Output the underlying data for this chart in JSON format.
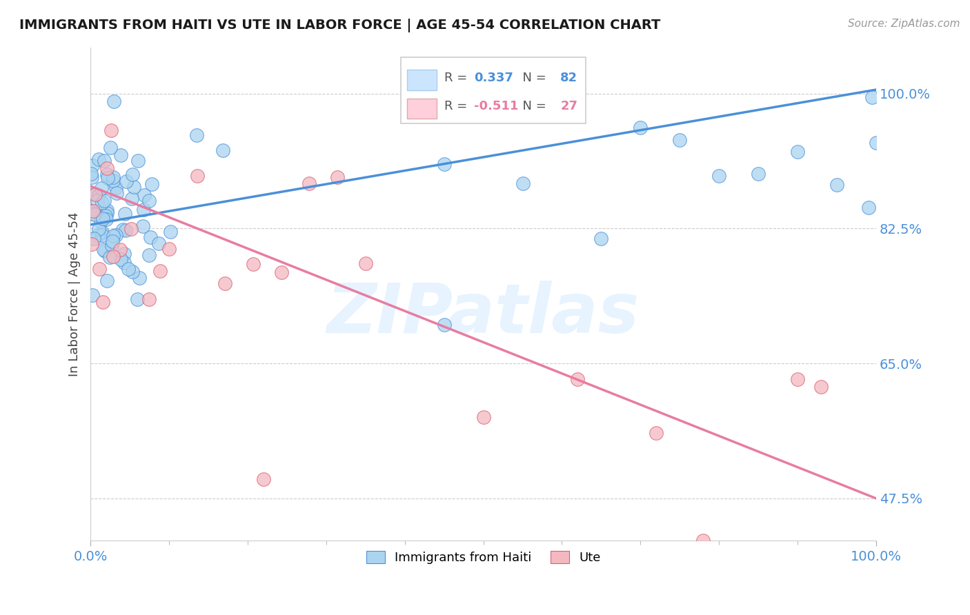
{
  "title": "IMMIGRANTS FROM HAITI VS UTE IN LABOR FORCE | AGE 45-54 CORRELATION CHART",
  "source": "Source: ZipAtlas.com",
  "ylabel": "In Labor Force | Age 45-54",
  "xlim": [
    0.0,
    1.0
  ],
  "ylim": [
    0.42,
    1.06
  ],
  "yticks": [
    0.475,
    0.65,
    0.825,
    1.0
  ],
  "ytick_labels": [
    "47.5%",
    "65.0%",
    "82.5%",
    "100.0%"
  ],
  "xticks": [
    0.0,
    1.0
  ],
  "xtick_labels": [
    "0.0%",
    "100.0%"
  ],
  "haiti_R": 0.337,
  "haiti_N": 82,
  "ute_R": -0.511,
  "ute_N": 27,
  "haiti_color": "#aad4f0",
  "ute_color": "#f4b8c1",
  "haiti_line_color": "#4a90d9",
  "ute_line_color": "#e87ca0",
  "background_color": "#ffffff",
  "watermark": "ZIPatlas",
  "legend_box_color": "#cce5ff",
  "legend_pink_color": "#ffd0dc",
  "haiti_line_y0": 0.83,
  "haiti_line_y1": 1.005,
  "ute_line_y0": 0.88,
  "ute_line_y1": 0.475
}
